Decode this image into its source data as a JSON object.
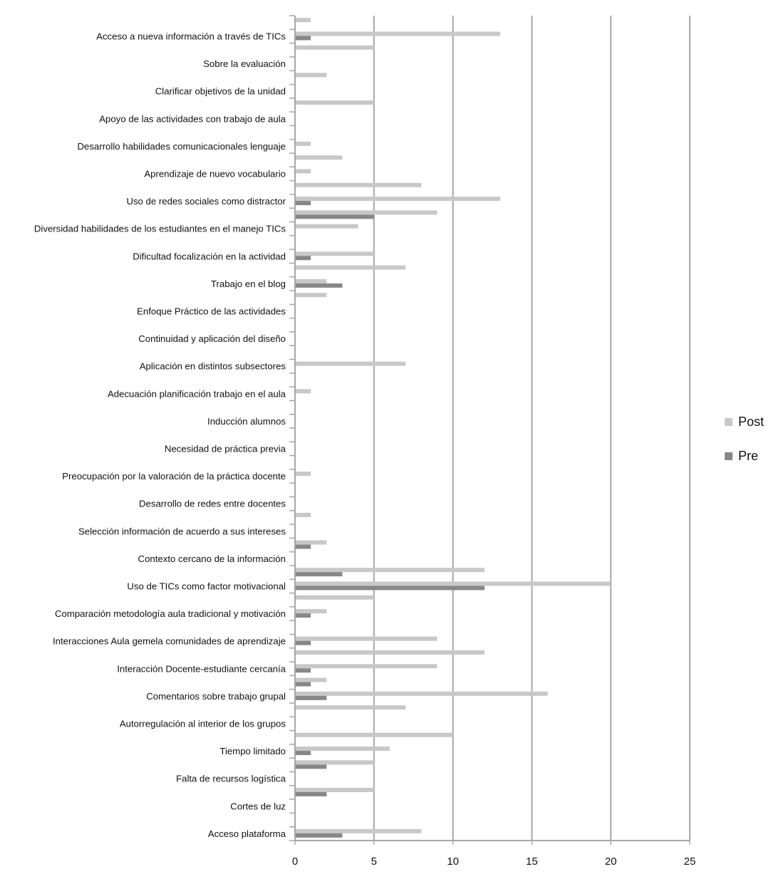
{
  "chart_data": {
    "type": "bar",
    "orientation": "horizontal",
    "title": "",
    "xlabel": "",
    "ylabel": "",
    "xlim": [
      0,
      25
    ],
    "xticks": [
      0,
      5,
      10,
      15,
      20,
      25
    ],
    "grid": true,
    "legend_position": "right",
    "categories": [
      "",
      "Acceso a nueva información a través de TICs",
      "",
      "Sobre la evaluación",
      "",
      "Clarificar objetivos de la unidad",
      "",
      "Apoyo de las actividades con trabajo de aula",
      "",
      "Desarrollo habilidades comunicacionales lenguaje",
      "",
      "Aprendizaje de nuevo vocabulario",
      "",
      "Uso de redes sociales como distractor",
      "",
      "Diversidad habilidades de los estudiantes en el manejo TICs",
      "",
      "Dificultad focalización en la actividad",
      "",
      "Trabajo en el blog",
      "",
      "Enfoque Práctico de las actividades",
      "",
      "Continuidad y aplicación del diseño",
      "",
      "Aplicación en distintos subsectores",
      "",
      "Adecuación planificación trabajo en el aula",
      "",
      "Inducción alumnos",
      "",
      "Necesidad de práctica previa",
      "",
      "Preocupación por la valoración de la práctica docente",
      "",
      "Desarrollo de redes entre docentes",
      "",
      "Selección información de acuerdo a sus intereses",
      "",
      "Contexto cercano de la información",
      "",
      "Uso de TICs como factor motivacional",
      "",
      "Comparación metodología aula tradicional y motivación",
      "",
      "Interacciones Aula gemela comunidades de aprendizaje",
      "",
      "Interacción Docente-estudiante cercanía",
      "",
      "Comentarios sobre trabajo grupal",
      "",
      "Autorregulación al interior de los grupos",
      "",
      "Tiempo limitado",
      "",
      "Falta de recursos logística",
      "",
      "Cortes de luz",
      "",
      "Acceso plataforma"
    ],
    "series": [
      {
        "name": "Post",
        "color": "#c8c8c8",
        "values": [
          1,
          13,
          5,
          0,
          2,
          0,
          5,
          0,
          0,
          1,
          3,
          1,
          8,
          13,
          9,
          4,
          0,
          5,
          7,
          2,
          2,
          0,
          0,
          0,
          0,
          7,
          0,
          1,
          0,
          0,
          0,
          0,
          0,
          1,
          0,
          0,
          1,
          0,
          2,
          0,
          12,
          20,
          5,
          2,
          0,
          9,
          12,
          9,
          2,
          16,
          7,
          0,
          10,
          6,
          5,
          0,
          5,
          0,
          0,
          8
        ]
      },
      {
        "name": "Pre",
        "color": "#878787",
        "values": [
          0,
          1,
          0,
          0,
          0,
          0,
          0,
          0,
          0,
          0,
          0,
          0,
          0,
          1,
          5,
          0,
          0,
          1,
          0,
          3,
          0,
          0,
          0,
          0,
          0,
          0,
          0,
          0,
          0,
          0,
          0,
          0,
          0,
          0,
          0,
          0,
          0,
          0,
          1,
          0,
          3,
          12,
          0,
          1,
          0,
          1,
          0,
          1,
          1,
          2,
          0,
          0,
          0,
          1,
          2,
          0,
          2,
          0,
          0,
          3
        ]
      }
    ]
  }
}
